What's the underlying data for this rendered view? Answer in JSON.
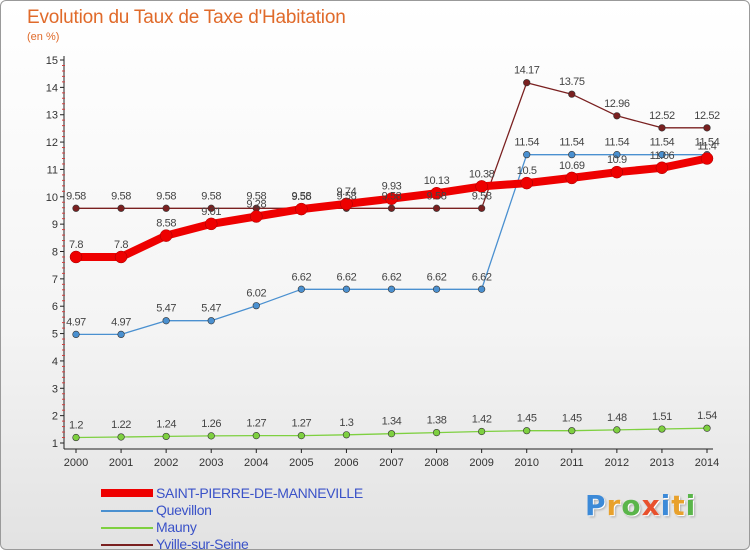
{
  "header": {
    "title": "Evolution du Taux de Taxe d'Habitation",
    "subtitle": "(en %)"
  },
  "brand": {
    "text": "Proxiti",
    "colors": [
      "#3c8ad8",
      "#e8a12c",
      "#5ab54a",
      "#e8502c",
      "#3c8ad8",
      "#e8a12c",
      "#5ab54a"
    ]
  },
  "chart_data": {
    "type": "line",
    "x": [
      2000,
      2001,
      2002,
      2003,
      2004,
      2005,
      2006,
      2007,
      2008,
      2009,
      2010,
      2011,
      2012,
      2013,
      2014
    ],
    "ylim": [
      1,
      15
    ],
    "yticks": [
      1,
      2,
      3,
      4,
      5,
      6,
      7,
      8,
      9,
      10,
      11,
      12,
      13,
      14,
      15
    ],
    "grid": false,
    "legend_position": "bottom-left",
    "series": [
      {
        "name": "SAINT-PIERRE-DE-MANNEVILLE",
        "color": "#ee0000",
        "values": [
          7.8,
          7.8,
          8.58,
          9.01,
          9.28,
          9.55,
          9.74,
          9.93,
          10.13,
          10.38,
          10.5,
          10.69,
          10.9,
          11.06,
          11.4
        ],
        "labels": [
          "7.8",
          "7.8",
          "8.58",
          "9.01",
          "9.28",
          "9.55",
          "9.74",
          "9.93",
          "10.13",
          "10.38",
          "10.5",
          "10.69",
          "10.9",
          "11.06",
          "11.4"
        ]
      },
      {
        "name": "Quevillon",
        "color": "#4a90d0",
        "values": [
          4.97,
          4.97,
          5.47,
          5.47,
          6.02,
          6.62,
          6.62,
          6.62,
          6.62,
          6.62,
          11.54,
          11.54,
          11.54,
          11.54,
          11.54
        ],
        "labels": [
          "4.97",
          "4.97",
          "5.47",
          "5.47",
          "6.02",
          "6.62",
          "6.62",
          "6.62",
          "6.62",
          "6.62",
          "11.54",
          "11.54",
          "11.54",
          "11.54",
          "11.54"
        ]
      },
      {
        "name": "Mauny",
        "color": "#7ed040",
        "values": [
          1.2,
          1.22,
          1.24,
          1.26,
          1.27,
          1.27,
          1.3,
          1.34,
          1.38,
          1.42,
          1.45,
          1.45,
          1.48,
          1.51,
          1.54
        ],
        "labels": [
          "1.2",
          "1.22",
          "1.24",
          "1.26",
          "1.27",
          "1.27",
          "1.3",
          "1.34",
          "1.38",
          "1.42",
          "1.45",
          "1.45",
          "1.48",
          "1.51",
          "1.54"
        ]
      },
      {
        "name": "Yville-sur-Seine",
        "color": "#7a2020",
        "values": [
          9.58,
          9.58,
          9.58,
          9.58,
          9.58,
          9.58,
          9.58,
          9.58,
          9.58,
          9.58,
          14.17,
          13.75,
          12.96,
          12.52,
          12.52
        ],
        "labels": [
          "9.58",
          "9.58",
          "9.58",
          "9.58",
          "9.58",
          "9.58",
          "9.58",
          "9.58",
          "9.58",
          "9.58",
          "14.17",
          "13.75",
          "12.96",
          "12.52",
          "12.52"
        ]
      }
    ]
  }
}
